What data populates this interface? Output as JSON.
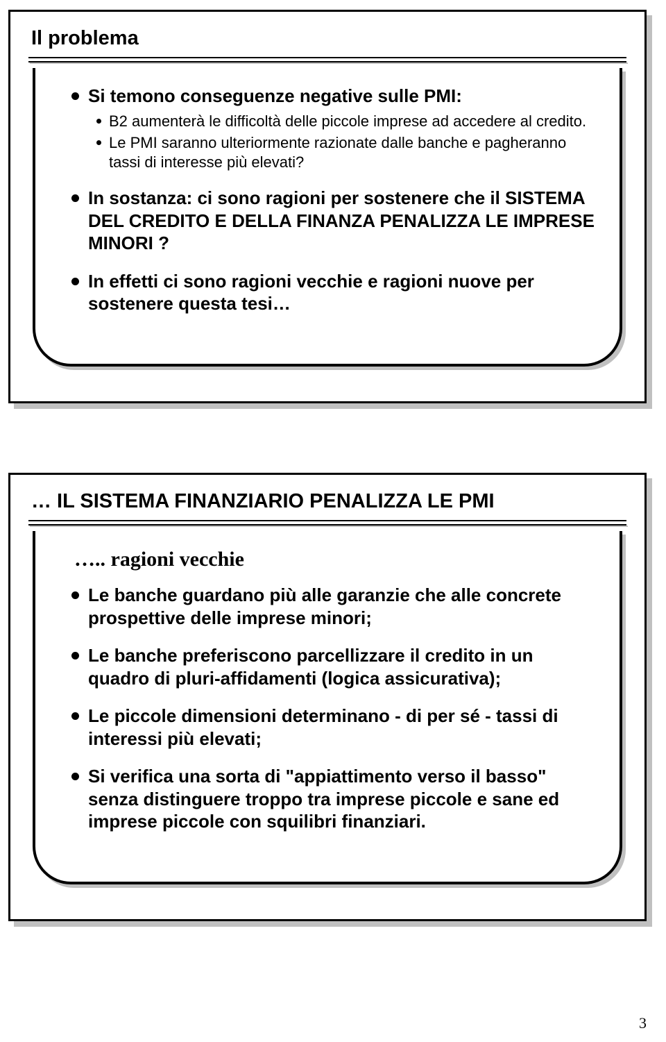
{
  "page_number": "3",
  "slide1": {
    "title": "Il problema",
    "b1": "Si temono conseguenze negative sulle PMI:",
    "s1": "B2 aumenterà le difficoltà delle piccole imprese ad accedere al credito.",
    "s2": "Le PMI saranno ulteriormente razionate dalle banche e pagheranno tassi di interesse più elevati?",
    "b2": "In sostanza: ci sono ragioni per sostenere che il SISTEMA DEL CREDITO E DELLA FINANZA PENALIZZA LE IMPRESE MINORI ?",
    "b3": "In effetti ci sono ragioni vecchie e ragioni nuove per sostenere questa tesi…"
  },
  "slide2": {
    "title": "… IL SISTEMA FINANZIARIO PENALIZZA LE PMI",
    "intro": "….. ragioni vecchie",
    "b1": "Le banche guardano più alle garanzie che alle concrete prospettive delle imprese minori;",
    "b2": "Le banche preferiscono parcellizzare il credito in un quadro di pluri-affidamenti (logica assicurativa);",
    "b3": "Le piccole dimensioni determinano - di per sé - tassi di interessi più elevati;",
    "b4": "Si verifica una sorta di \"appiattimento verso il basso\" senza distinguere troppo tra imprese piccole e sane ed imprese piccole con squilibri finanziari."
  }
}
